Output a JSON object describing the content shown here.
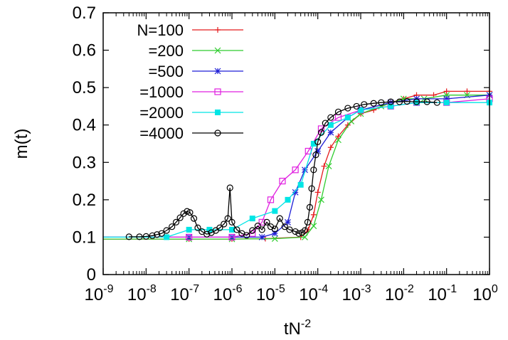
{
  "chart_data": {
    "type": "scatter",
    "xlabel_base": "tN",
    "xlabel_exp": "-2",
    "ylabel": "m(t)",
    "x_scale": "log",
    "xlim": [
      1e-09,
      1
    ],
    "ylim": [
      0,
      0.7
    ],
    "x_ticks": [
      {
        "base": "10",
        "exp": "-9",
        "value": 1e-09
      },
      {
        "base": "10",
        "exp": "-8",
        "value": 1e-08
      },
      {
        "base": "10",
        "exp": "-7",
        "value": 1e-07
      },
      {
        "base": "10",
        "exp": "-6",
        "value": 1e-06
      },
      {
        "base": "10",
        "exp": "-5",
        "value": 1e-05
      },
      {
        "base": "10",
        "exp": "-4",
        "value": 0.0001
      },
      {
        "base": "10",
        "exp": "-3",
        "value": 0.001
      },
      {
        "base": "10",
        "exp": "-2",
        "value": 0.01
      },
      {
        "base": "10",
        "exp": "-1",
        "value": 0.1
      },
      {
        "base": "10",
        "exp": "0",
        "value": 1
      }
    ],
    "y_ticks": [
      {
        "label": "0",
        "value": 0
      },
      {
        "label": "0.1",
        "value": 0.1
      },
      {
        "label": "0.2",
        "value": 0.2
      },
      {
        "label": "0.3",
        "value": 0.3
      },
      {
        "label": "0.4",
        "value": 0.4
      },
      {
        "label": "0.5",
        "value": 0.5
      },
      {
        "label": "0.6",
        "value": 0.6
      },
      {
        "label": "0.7",
        "value": 0.7
      }
    ],
    "grid": false,
    "legend_position": "top-left",
    "series": [
      {
        "name": "N=100",
        "color": "#e41a1c",
        "marker": "plus",
        "points": [
          [
            1e-09,
            0.095
          ],
          [
            1e-07,
            0.095
          ],
          [
            1e-06,
            0.095
          ],
          [
            6e-06,
            0.096
          ],
          [
            4e-05,
            0.1
          ],
          [
            6e-05,
            0.12
          ],
          [
            8e-05,
            0.16
          ],
          [
            0.0001,
            0.22
          ],
          [
            0.00014,
            0.29
          ],
          [
            0.0002,
            0.34
          ],
          [
            0.0003,
            0.37
          ],
          [
            0.0005,
            0.4
          ],
          [
            0.001,
            0.43
          ],
          [
            0.002,
            0.44
          ],
          [
            0.005,
            0.46
          ],
          [
            0.01,
            0.47
          ],
          [
            0.02,
            0.48
          ],
          [
            0.05,
            0.48
          ],
          [
            0.1,
            0.49
          ],
          [
            0.3,
            0.49
          ],
          [
            1,
            0.49
          ]
        ]
      },
      {
        "name": "=200",
        "color": "#2ecc2e",
        "marker": "cross",
        "points": [
          [
            1e-09,
            0.095
          ],
          [
            1e-07,
            0.095
          ],
          [
            1e-06,
            0.095
          ],
          [
            1e-05,
            0.096
          ],
          [
            5e-05,
            0.1
          ],
          [
            8e-05,
            0.13
          ],
          [
            0.00012,
            0.2
          ],
          [
            0.00018,
            0.29
          ],
          [
            0.0003,
            0.36
          ],
          [
            0.0006,
            0.41
          ],
          [
            0.001,
            0.43
          ],
          [
            0.003,
            0.45
          ],
          [
            0.01,
            0.47
          ],
          [
            0.03,
            0.47
          ],
          [
            0.1,
            0.48
          ],
          [
            0.3,
            0.48
          ],
          [
            1,
            0.48
          ]
        ]
      },
      {
        "name": "=500",
        "color": "#1f1fd6",
        "marker": "star",
        "points": [
          [
            1e-09,
            0.1
          ],
          [
            1e-07,
            0.1
          ],
          [
            1e-06,
            0.1
          ],
          [
            5e-06,
            0.1
          ],
          [
            1e-05,
            0.11
          ],
          [
            2e-05,
            0.14
          ],
          [
            3e-05,
            0.22
          ],
          [
            5e-05,
            0.28
          ],
          [
            0.0001,
            0.33
          ],
          [
            0.0002,
            0.38
          ],
          [
            0.0005,
            0.42
          ],
          [
            0.001,
            0.44
          ],
          [
            0.005,
            0.46
          ],
          [
            0.02,
            0.47
          ],
          [
            0.1,
            0.47
          ],
          [
            1,
            0.48
          ]
        ]
      },
      {
        "name": "=1000",
        "color": "#e020e0",
        "marker": "square",
        "points": [
          [
            1e-09,
            0.1
          ],
          [
            1e-07,
            0.1
          ],
          [
            1e-06,
            0.1
          ],
          [
            3e-06,
            0.11
          ],
          [
            5e-06,
            0.14
          ],
          [
            8e-06,
            0.2
          ],
          [
            1.5e-05,
            0.25
          ],
          [
            3e-05,
            0.28
          ],
          [
            6e-05,
            0.33
          ],
          [
            0.00012,
            0.39
          ],
          [
            0.0003,
            0.42
          ],
          [
            0.001,
            0.44
          ],
          [
            0.005,
            0.45
          ],
          [
            0.02,
            0.46
          ],
          [
            0.1,
            0.46
          ],
          [
            1,
            0.47
          ]
        ]
      },
      {
        "name": "=2000",
        "color": "#00e5e5",
        "marker": "filled-square",
        "points": [
          [
            1e-09,
            0.1
          ],
          [
            3e-08,
            0.1
          ],
          [
            1e-07,
            0.12
          ],
          [
            3e-07,
            0.12
          ],
          [
            1e-06,
            0.12
          ],
          [
            3e-06,
            0.15
          ],
          [
            1e-05,
            0.17
          ],
          [
            2e-05,
            0.2
          ],
          [
            4e-05,
            0.24
          ],
          [
            8e-05,
            0.35
          ],
          [
            0.0002,
            0.4
          ],
          [
            0.0005,
            0.42
          ],
          [
            0.001,
            0.44
          ],
          [
            0.005,
            0.45
          ],
          [
            0.02,
            0.46
          ],
          [
            0.1,
            0.46
          ],
          [
            1,
            0.46
          ]
        ]
      },
      {
        "name": "=4000",
        "color": "#000000",
        "marker": "circle",
        "points": [
          [
            4e-09,
            0.101
          ],
          [
            7e-09,
            0.101
          ],
          [
            1e-08,
            0.102
          ],
          [
            1.4e-08,
            0.104
          ],
          [
            1.8e-08,
            0.107
          ],
          [
            2.3e-08,
            0.11
          ],
          [
            3e-08,
            0.118
          ],
          [
            4e-08,
            0.128
          ],
          [
            5e-08,
            0.14
          ],
          [
            6.2e-08,
            0.152
          ],
          [
            7.5e-08,
            0.163
          ],
          [
            9e-08,
            0.169
          ],
          [
            1.05e-07,
            0.166
          ],
          [
            1.3e-07,
            0.15
          ],
          [
            1.6e-07,
            0.125
          ],
          [
            2e-07,
            0.115
          ],
          [
            2.6e-07,
            0.108
          ],
          [
            3.3e-07,
            0.112
          ],
          [
            4.2e-07,
            0.118
          ],
          [
            5.2e-07,
            0.125
          ],
          [
            6.5e-07,
            0.135
          ],
          [
            8e-07,
            0.15
          ],
          [
            9e-07,
            0.232
          ],
          [
            1e-06,
            0.14
          ],
          [
            1.3e-06,
            0.12
          ],
          [
            1.7e-06,
            0.11
          ],
          [
            2.2e-06,
            0.105
          ],
          [
            3e-06,
            0.118
          ],
          [
            4e-06,
            0.13
          ],
          [
            5e-06,
            0.12
          ],
          [
            6.5e-06,
            0.14
          ],
          [
            8e-06,
            0.128
          ],
          [
            1e-05,
            0.122
          ],
          [
            1.3e-05,
            0.15
          ],
          [
            1.7e-05,
            0.128
          ],
          [
            2.2e-05,
            0.12
          ],
          [
            3e-05,
            0.115
          ],
          [
            3.6e-05,
            0.11
          ],
          [
            4.3e-05,
            0.112
          ],
          [
            5e-05,
            0.118
          ],
          [
            5.8e-05,
            0.14
          ],
          [
            6.5e-05,
            0.18
          ],
          [
            7.2e-05,
            0.23
          ],
          [
            8e-05,
            0.28
          ],
          [
            9e-05,
            0.32
          ],
          [
            0.0001,
            0.355
          ],
          [
            0.00012,
            0.38
          ],
          [
            0.00015,
            0.405
          ],
          [
            0.0002,
            0.42
          ],
          [
            0.0003,
            0.435
          ],
          [
            0.0005,
            0.445
          ],
          [
            0.0008,
            0.45
          ],
          [
            0.0012,
            0.455
          ],
          [
            0.002,
            0.458
          ],
          [
            0.003,
            0.46
          ],
          [
            0.005,
            0.462
          ],
          [
            0.008,
            0.462
          ],
          [
            0.012,
            0.463
          ],
          [
            0.02,
            0.462
          ],
          [
            0.035,
            0.462
          ],
          [
            0.06,
            0.46
          ]
        ]
      }
    ]
  }
}
